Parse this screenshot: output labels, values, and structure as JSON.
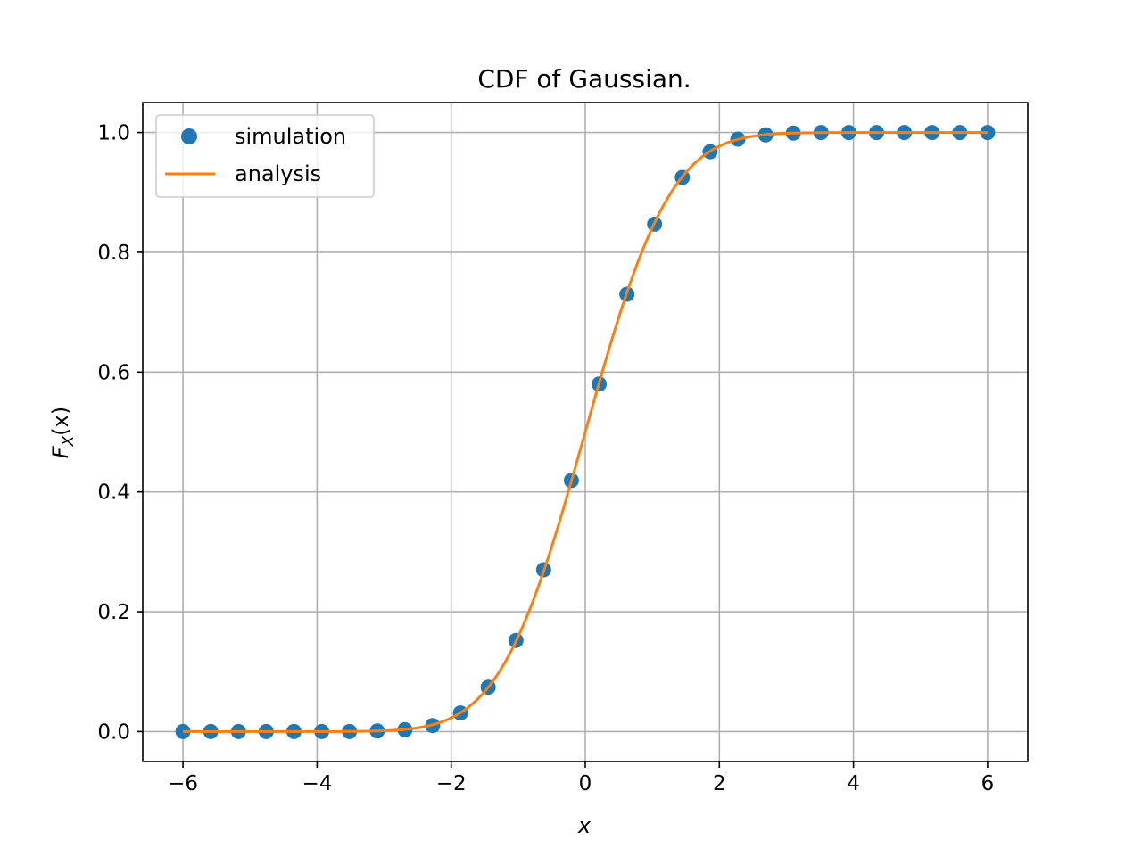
{
  "chart_data": {
    "type": "line",
    "title": "CDF of Gaussian.",
    "xlabel": "x",
    "ylabel": {
      "base": "F",
      "sub": "X",
      "arg": "(x)"
    },
    "xlim": [
      -6.6,
      6.6
    ],
    "ylim": [
      -0.05,
      1.05
    ],
    "xticks": [
      -6,
      -4,
      -2,
      0,
      2,
      4,
      6
    ],
    "xtick_labels": [
      "−6",
      "−4",
      "−2",
      "0",
      "2",
      "4",
      "6"
    ],
    "yticks": [
      0.0,
      0.2,
      0.4,
      0.6,
      0.8,
      1.0
    ],
    "ytick_labels": [
      "0.0",
      "0.2",
      "0.4",
      "0.6",
      "0.8",
      "1.0"
    ],
    "grid": true,
    "legend_position": "top-left",
    "series": [
      {
        "name": "simulation",
        "style": "markers",
        "color": "#1f77b4",
        "x": [
          -6.0,
          -5.586,
          -5.172,
          -4.759,
          -4.345,
          -3.931,
          -3.517,
          -3.103,
          -2.69,
          -2.276,
          -1.862,
          -1.448,
          -1.034,
          -0.621,
          -0.207,
          0.207,
          0.621,
          1.034,
          1.448,
          1.862,
          2.276,
          2.69,
          3.103,
          3.517,
          3.931,
          4.345,
          4.759,
          5.172,
          5.586,
          6.0
        ],
        "y": [
          0.0,
          0.0,
          0.0,
          0.0,
          0.0,
          0.0,
          0.0,
          0.001,
          0.003,
          0.01,
          0.031,
          0.074,
          0.152,
          0.27,
          0.419,
          0.58,
          0.73,
          0.847,
          0.925,
          0.968,
          0.989,
          0.996,
          0.999,
          1.0,
          1.0,
          1.0,
          1.0,
          1.0,
          1.0,
          1.0
        ]
      },
      {
        "name": "analysis",
        "style": "line",
        "color": "#ff7f0e",
        "function": "standard normal CDF",
        "x_range": [
          -6,
          6
        ]
      }
    ]
  }
}
